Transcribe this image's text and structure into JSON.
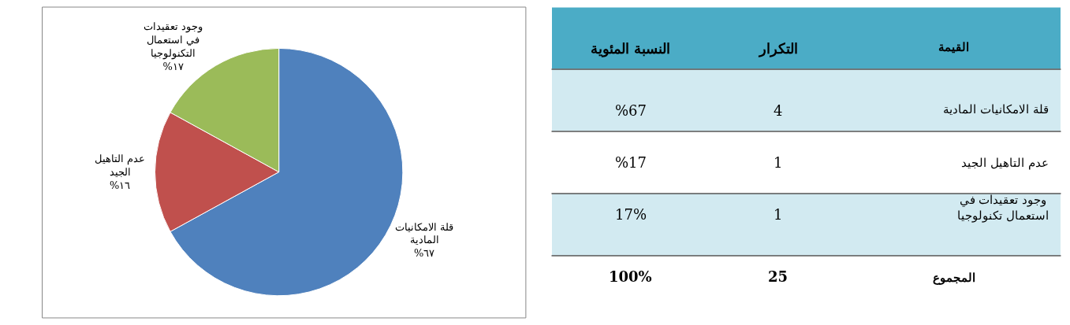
{
  "chart_data": [
    {
      "type": "pie",
      "categories": [
        "قلة الامكانيات المادية",
        "عدم التاهيل الجيد",
        "وجود تعقيدات في استعمال التكنولوجيا"
      ],
      "values": [
        67,
        16,
        17
      ],
      "value_labels": [
        "%٦٧",
        "%١٦",
        "%١٧"
      ],
      "colors": [
        "#4f81bd",
        "#c0504d",
        "#9bbb59"
      ]
    },
    {
      "type": "other",
      "annotations": [
        "القيمة",
        "التكرار",
        "النسبة المئوية",
        "قلة الامكانيات المادية",
        "4",
        "%67",
        "عدم التاهيل الجيد",
        "1",
        "%17",
        "وجود تعقيدات في استعمال تكنولوجيا",
        "1",
        "17%",
        "المجموع",
        "25",
        "100%"
      ]
    }
  ]
}
